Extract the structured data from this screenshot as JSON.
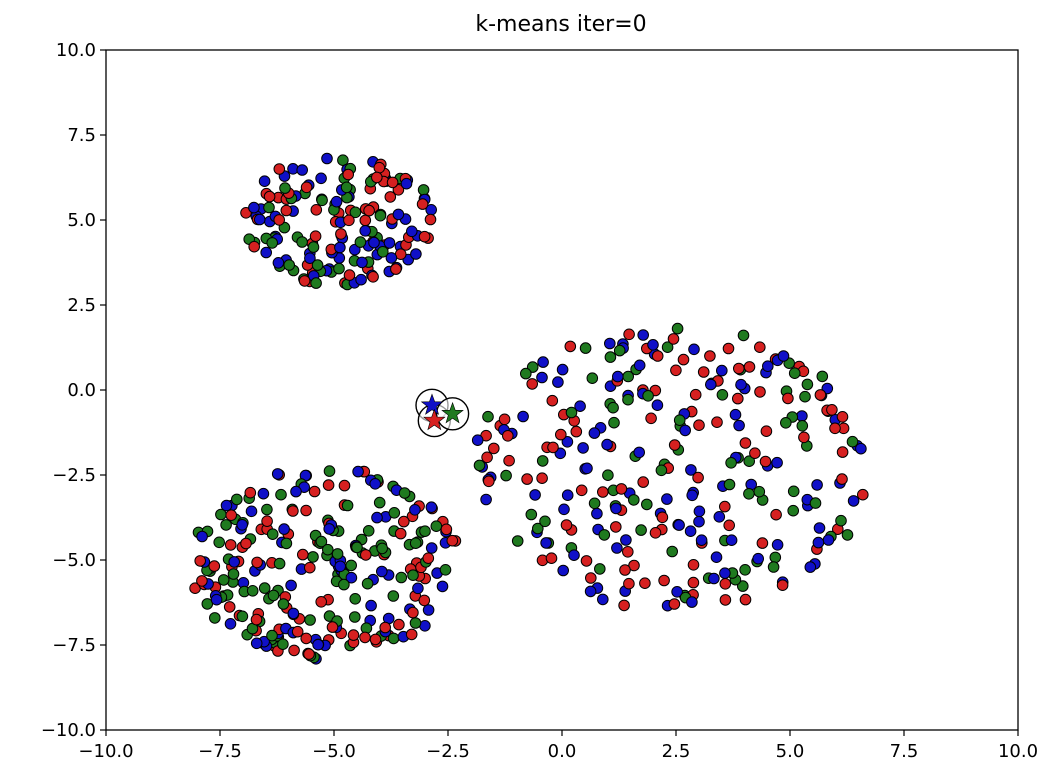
{
  "chart_data": {
    "type": "scatter",
    "title": "k-means iter=0",
    "xlabel": "",
    "ylabel": "",
    "xlim": [
      -10.0,
      10.0
    ],
    "ylim": [
      -10.0,
      10.0
    ],
    "grid": false,
    "xticks": [
      -10.0,
      -7.5,
      -5.0,
      -2.5,
      0.0,
      2.5,
      5.0,
      7.5,
      10.0
    ],
    "yticks": [
      -10.0,
      -7.5,
      -5.0,
      -2.5,
      0.0,
      2.5,
      5.0,
      7.5,
      10.0
    ],
    "xtick_labels": [
      "−10.0",
      "−7.5",
      "−5.0",
      "−2.5",
      "0.0",
      "2.5",
      "5.0",
      "7.5",
      "10.0"
    ],
    "ytick_labels": [
      "−10.0",
      "−7.5",
      "−5.0",
      "−2.5",
      "0.0",
      "2.5",
      "5.0",
      "7.5",
      "10.0"
    ],
    "colors": {
      "red": "#d62020",
      "green": "#1f7a1f",
      "blue": "#1010c8",
      "edge": "#000000"
    },
    "clusters": [
      {
        "label": "top-left blob",
        "center": [
          -4.9,
          5.0
        ],
        "rx": 2.1,
        "ry": 1.95,
        "count": 170
      },
      {
        "label": "bottom-left blob",
        "center": [
          -5.2,
          -5.1
        ],
        "rx": 2.95,
        "ry": 2.85,
        "count": 260
      },
      {
        "label": "right blob",
        "center": [
          2.4,
          -2.3
        ],
        "rx": 4.4,
        "ry": 4.2,
        "count": 290
      }
    ],
    "centroids": [
      {
        "color": "blue",
        "x": -2.85,
        "y": -0.45
      },
      {
        "color": "red",
        "x": -2.8,
        "y": -0.9
      },
      {
        "color": "green",
        "x": -2.4,
        "y": -0.7
      }
    ]
  }
}
